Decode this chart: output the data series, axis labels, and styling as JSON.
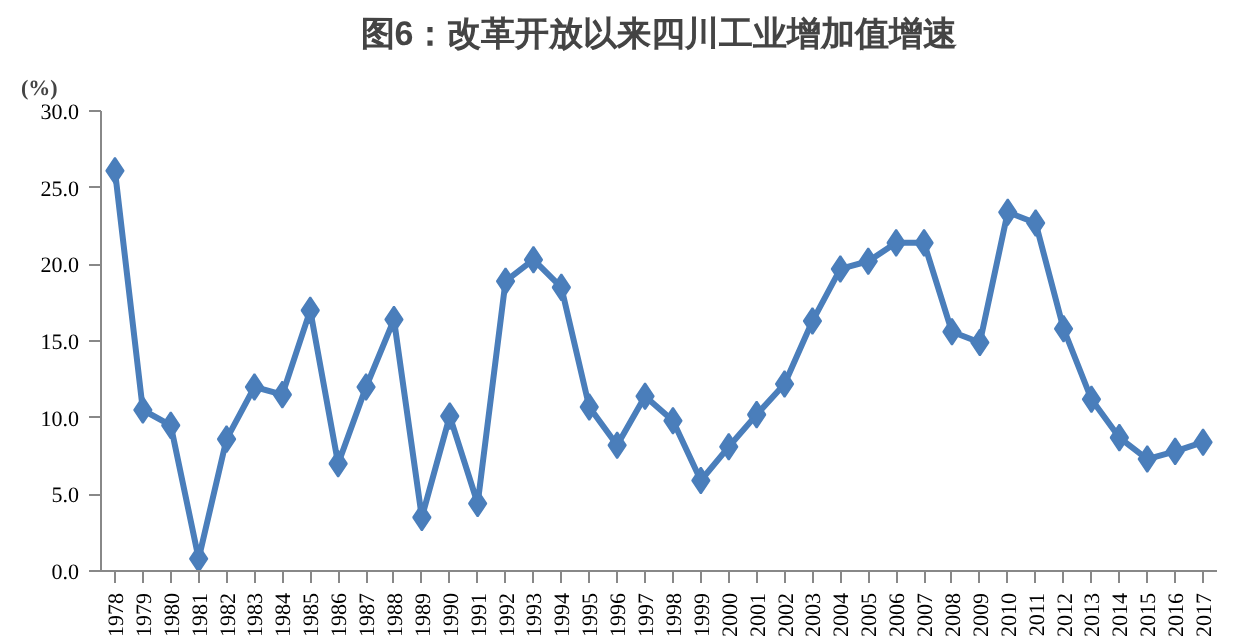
{
  "chart_data": {
    "type": "line",
    "title": "图6：改革开放以来四川工业增加值增速",
    "ylabel": "(%)",
    "categories": [
      "1978",
      "1979",
      "1980",
      "1981",
      "1982",
      "1983",
      "1984",
      "1985",
      "1986",
      "1987",
      "1988",
      "1989",
      "1990",
      "1991",
      "1992",
      "1993",
      "1994",
      "1995",
      "1996",
      "1997",
      "1998",
      "1999",
      "2000",
      "2001",
      "2002",
      "2003",
      "2004",
      "2005",
      "2006",
      "2007",
      "2008",
      "2009",
      "2010",
      "2011",
      "2012",
      "2013",
      "2014",
      "2015",
      "2016",
      "2017"
    ],
    "series": [
      {
        "color": "#4a7ebb",
        "values": [
          26.1,
          10.5,
          9.5,
          0.8,
          8.6,
          12.0,
          11.5,
          17.0,
          7.0,
          12.0,
          16.4,
          3.5,
          10.1,
          4.4,
          18.9,
          20.3,
          18.5,
          10.7,
          8.2,
          11.4,
          9.8,
          5.9,
          8.1,
          10.2,
          12.2,
          16.3,
          19.7,
          20.2,
          21.4,
          21.4,
          15.6,
          14.9,
          23.4,
          22.7,
          15.8,
          11.2,
          8.7,
          7.3,
          7.8,
          8.4
        ]
      }
    ],
    "ylim": [
      0,
      30
    ],
    "yticks": [
      {
        "value": 0,
        "label": "0.0"
      },
      {
        "value": 5,
        "label": "5.0"
      },
      {
        "value": 10,
        "label": "10.0"
      },
      {
        "value": 15,
        "label": "15.0"
      },
      {
        "value": 20,
        "label": "20.0"
      },
      {
        "value": 25,
        "label": "25.0"
      },
      {
        "value": 30,
        "label": "30.0"
      }
    ],
    "marker": "diamond",
    "line_style": "solid",
    "grid": false
  }
}
